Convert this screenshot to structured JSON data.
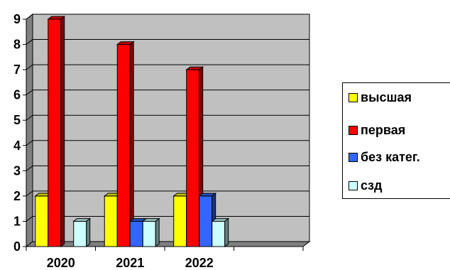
{
  "chart_data": {
    "type": "bar",
    "categories": [
      "2020",
      "2021",
      "2022",
      ""
    ],
    "series": [
      {
        "name": "высшая",
        "values": [
          2,
          2,
          2,
          null
        ],
        "color": "#FFFF00"
      },
      {
        "name": "первая",
        "values": [
          9,
          8,
          7,
          null
        ],
        "color": "#FF0000"
      },
      {
        "name": "без катег.",
        "values": [
          0,
          1,
          2,
          null
        ],
        "color": "#3366FF"
      },
      {
        "name": "сзд",
        "values": [
          1,
          1,
          1,
          null
        ],
        "color": "#CCFFFF"
      }
    ],
    "title": "",
    "xlabel": "",
    "ylabel": "",
    "ylim": [
      0,
      9
    ],
    "yticks": [
      "0",
      "1",
      "2",
      "3",
      "4",
      "5",
      "6",
      "7",
      "8",
      "9"
    ],
    "grid": true,
    "three_d": true,
    "plot_background": "#C0C0C0",
    "legend_position": "right"
  }
}
